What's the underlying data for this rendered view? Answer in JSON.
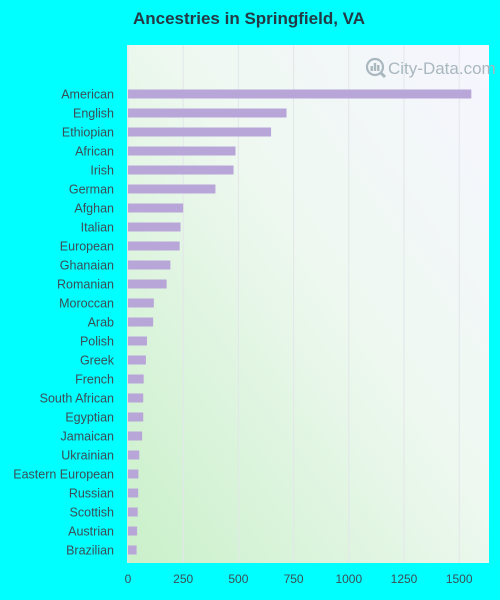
{
  "chart_data": {
    "type": "bar",
    "orientation": "horizontal",
    "title": "Ancestries in Springfield, VA",
    "categories": [
      "American",
      "English",
      "Ethiopian",
      "African",
      "Irish",
      "German",
      "Afghan",
      "Italian",
      "European",
      "Ghanaian",
      "Romanian",
      "Moroccan",
      "Arab",
      "Polish",
      "Greek",
      "French",
      "South African",
      "Egyptian",
      "Jamaican",
      "Ukrainian",
      "Eastern European",
      "Russian",
      "Scottish",
      "Austrian",
      "Brazilian"
    ],
    "values": [
      1555,
      718,
      648,
      487,
      478,
      396,
      250,
      238,
      234,
      192,
      175,
      117,
      114,
      86,
      81,
      71,
      69,
      69,
      64,
      51,
      47,
      46,
      44,
      41,
      39
    ],
    "xticks": [
      0,
      250,
      500,
      750,
      1000,
      1250,
      1500
    ],
    "xlim": [
      0,
      1635
    ],
    "grid": true,
    "legend": "none",
    "bar_color": "#b9a6d9"
  },
  "watermark": {
    "text": "City-Data.com",
    "icon": "city-data-logo-icon"
  }
}
